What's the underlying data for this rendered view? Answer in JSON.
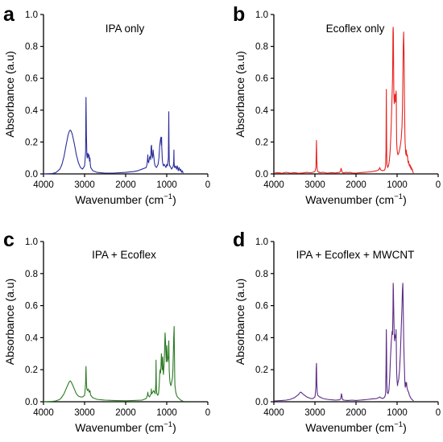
{
  "chart_data": [
    {
      "type": "line",
      "panel_letter": "a",
      "title": "IPA only",
      "xlabel": "Wavenumber (cm",
      "xlabel_sup": "−1",
      "xlabel_end": ")",
      "ylabel": "Absorbance (a.u)",
      "xlim": [
        4000,
        0
      ],
      "ylim": [
        0,
        1.0
      ],
      "xticks": [
        "4000",
        "3000",
        "2000",
        "1000",
        "0"
      ],
      "yticks": [
        "0.0",
        "0.2",
        "0.4",
        "0.6",
        "0.8",
        "1.0"
      ],
      "color": "#2b2f9a",
      "series": [
        {
          "x": [
            4000,
            3800,
            3700,
            3600,
            3550,
            3500,
            3450,
            3400,
            3370,
            3350,
            3330,
            3300,
            3250,
            3200,
            3150,
            3100,
            3050,
            3000,
            2990,
            2975,
            2970,
            2965,
            2955,
            2945,
            2935,
            2920,
            2900,
            2890,
            2880,
            2870,
            2860,
            2850,
            2800,
            2700,
            2500,
            2300,
            2000,
            1800,
            1700,
            1600,
            1500,
            1480,
            1465,
            1460,
            1455,
            1440,
            1420,
            1410,
            1400,
            1390,
            1380,
            1370,
            1360,
            1345,
            1330,
            1320,
            1310,
            1300,
            1280,
            1250,
            1230,
            1210,
            1190,
            1180,
            1170,
            1160,
            1150,
            1140,
            1130,
            1125,
            1120,
            1115,
            1110,
            1100,
            1080,
            1060,
            1040,
            1020,
            1000,
            980,
            960,
            955,
            950,
            945,
            940,
            935,
            930,
            920,
            900,
            880,
            860,
            840,
            830,
            825,
            820,
            815,
            810,
            800,
            780,
            760,
            740,
            720,
            700,
            680,
            660,
            640,
            620,
            600
          ],
          "y": [
            0.0,
            0.002,
            0.008,
            0.03,
            0.06,
            0.11,
            0.18,
            0.245,
            0.268,
            0.275,
            0.27,
            0.25,
            0.19,
            0.12,
            0.07,
            0.04,
            0.03,
            0.05,
            0.08,
            0.14,
            0.35,
            0.48,
            0.25,
            0.12,
            0.1,
            0.13,
            0.1,
            0.12,
            0.08,
            0.1,
            0.06,
            0.04,
            0.02,
            0.01,
            0.005,
            0.005,
            0.01,
            0.015,
            0.02,
            0.03,
            0.04,
            0.06,
            0.1,
            0.12,
            0.08,
            0.07,
            0.1,
            0.11,
            0.1,
            0.09,
            0.17,
            0.18,
            0.12,
            0.1,
            0.15,
            0.12,
            0.1,
            0.07,
            0.05,
            0.04,
            0.05,
            0.06,
            0.1,
            0.14,
            0.18,
            0.2,
            0.22,
            0.23,
            0.18,
            0.23,
            0.16,
            0.14,
            0.1,
            0.07,
            0.05,
            0.06,
            0.05,
            0.04,
            0.06,
            0.05,
            0.1,
            0.25,
            0.39,
            0.2,
            0.1,
            0.07,
            0.05,
            0.05,
            0.04,
            0.03,
            0.04,
            0.05,
            0.08,
            0.15,
            0.07,
            0.05,
            0.04,
            0.04,
            0.05,
            0.03,
            0.05,
            0.02,
            0.04,
            0.02,
            0.03,
            0.01,
            0.02,
            0.005
          ]
        }
      ]
    },
    {
      "type": "line",
      "panel_letter": "b",
      "title": "Ecoflex only",
      "xlabel": "Wavenumber (cm",
      "xlabel_sup": "−1",
      "xlabel_end": ")",
      "ylabel": "Absorbance (a.u)",
      "xlim": [
        4000,
        0
      ],
      "ylim": [
        0,
        1.0
      ],
      "xticks": [
        "4000",
        "3000",
        "2000",
        "1000",
        "0"
      ],
      "yticks": [
        "0.0",
        "0.2",
        "0.4",
        "0.6",
        "0.8",
        "1.0"
      ],
      "color": "#e8231f",
      "series": [
        {
          "x": [
            4000,
            3900,
            3800,
            3700,
            3600,
            3500,
            3400,
            3300,
            3200,
            3100,
            3050,
            3000,
            2975,
            2970,
            2963,
            2955,
            2945,
            2930,
            2910,
            2900,
            2880,
            2800,
            2700,
            2600,
            2500,
            2400,
            2380,
            2365,
            2355,
            2340,
            2320,
            2300,
            2250,
            2200,
            2150,
            2100,
            2000,
            1900,
            1800,
            1700,
            1600,
            1500,
            1450,
            1420,
            1410,
            1400,
            1350,
            1300,
            1280,
            1270,
            1262,
            1258,
            1252,
            1245,
            1230,
            1210,
            1190,
            1170,
            1150,
            1130,
            1110,
            1100,
            1095,
            1090,
            1085,
            1080,
            1070,
            1060,
            1050,
            1040,
            1030,
            1025,
            1020,
            1015,
            1010,
            1000,
            980,
            960,
            940,
            920,
            900,
            880,
            870,
            860,
            850,
            840,
            830,
            820,
            815,
            810,
            805,
            800,
            795,
            790,
            785,
            780,
            775,
            770,
            760,
            750,
            740,
            730,
            720,
            710,
            700,
            690,
            680,
            670,
            660,
            650,
            640,
            630,
            620,
            610,
            600
          ],
          "y": [
            0.005,
            0.008,
            0.004,
            0.01,
            0.005,
            0.008,
            0.004,
            0.006,
            0.01,
            0.007,
            0.01,
            0.015,
            0.04,
            0.12,
            0.21,
            0.09,
            0.03,
            0.015,
            0.01,
            0.012,
            0.008,
            0.01,
            0.005,
            0.008,
            0.006,
            0.01,
            0.015,
            0.035,
            0.03,
            0.012,
            0.008,
            0.006,
            0.01,
            0.008,
            0.01,
            0.006,
            0.005,
            0.008,
            0.01,
            0.012,
            0.015,
            0.02,
            0.025,
            0.04,
            0.03,
            0.025,
            0.02,
            0.025,
            0.05,
            0.15,
            0.53,
            0.35,
            0.12,
            0.06,
            0.04,
            0.05,
            0.08,
            0.14,
            0.25,
            0.42,
            0.6,
            0.9,
            0.92,
            0.88,
            0.7,
            0.52,
            0.44,
            0.48,
            0.5,
            0.45,
            0.47,
            0.52,
            0.5,
            0.3,
            0.2,
            0.15,
            0.12,
            0.13,
            0.15,
            0.18,
            0.22,
            0.3,
            0.4,
            0.6,
            0.8,
            0.89,
            0.75,
            0.45,
            0.35,
            0.25,
            0.2,
            0.18,
            0.15,
            0.13,
            0.12,
            0.14,
            0.15,
            0.13,
            0.11,
            0.12,
            0.09,
            0.07,
            0.08,
            0.06,
            0.05,
            0.06,
            0.04,
            0.05,
            0.03,
            0.04,
            0.025,
            0.03,
            0.015,
            0.01,
            0.005
          ]
        }
      ]
    },
    {
      "type": "line",
      "panel_letter": "c",
      "title": "IPA + Ecoflex",
      "xlabel": "Wavenumber (cm",
      "xlabel_sup": "−1",
      "xlabel_end": ")",
      "ylabel": "Absorbance (a.u)",
      "xlim": [
        4000,
        0
      ],
      "ylim": [
        0,
        1.0
      ],
      "xticks": [
        "4000",
        "3000",
        "2000",
        "1000",
        "0"
      ],
      "yticks": [
        "0.0",
        "0.2",
        "0.4",
        "0.6",
        "0.8",
        "1.0"
      ],
      "color": "#2c7a24",
      "series": [
        {
          "x": [
            4000,
            3800,
            3700,
            3600,
            3550,
            3500,
            3450,
            3400,
            3370,
            3350,
            3330,
            3300,
            3250,
            3200,
            3150,
            3100,
            3050,
            3000,
            2990,
            2975,
            2970,
            2965,
            2955,
            2945,
            2930,
            2910,
            2890,
            2870,
            2850,
            2800,
            2700,
            2500,
            2300,
            2000,
            1800,
            1600,
            1500,
            1470,
            1460,
            1450,
            1420,
            1400,
            1380,
            1375,
            1370,
            1360,
            1340,
            1320,
            1300,
            1280,
            1265,
            1260,
            1255,
            1250,
            1240,
            1220,
            1200,
            1190,
            1180,
            1170,
            1160,
            1150,
            1140,
            1130,
            1120,
            1110,
            1100,
            1095,
            1090,
            1080,
            1060,
            1050,
            1040,
            1030,
            1020,
            1010,
            1000,
            990,
            980,
            960,
            955,
            950,
            945,
            940,
            930,
            920,
            900,
            880,
            860,
            850,
            840,
            830,
            820,
            815,
            810,
            805,
            800,
            790,
            780,
            770,
            760,
            740,
            720,
            700,
            680,
            660,
            640,
            620,
            600
          ],
          "y": [
            0.0,
            0.002,
            0.005,
            0.015,
            0.03,
            0.05,
            0.08,
            0.11,
            0.125,
            0.13,
            0.125,
            0.11,
            0.08,
            0.05,
            0.035,
            0.03,
            0.03,
            0.04,
            0.06,
            0.12,
            0.18,
            0.22,
            0.12,
            0.08,
            0.07,
            0.08,
            0.06,
            0.07,
            0.04,
            0.025,
            0.015,
            0.01,
            0.008,
            0.006,
            0.008,
            0.01,
            0.02,
            0.04,
            0.06,
            0.04,
            0.03,
            0.04,
            0.05,
            0.08,
            0.06,
            0.05,
            0.06,
            0.07,
            0.06,
            0.05,
            0.12,
            0.26,
            0.15,
            0.07,
            0.05,
            0.04,
            0.05,
            0.08,
            0.12,
            0.18,
            0.2,
            0.18,
            0.22,
            0.3,
            0.25,
            0.2,
            0.28,
            0.25,
            0.2,
            0.17,
            0.25,
            0.35,
            0.43,
            0.38,
            0.3,
            0.25,
            0.35,
            0.3,
            0.25,
            0.28,
            0.35,
            0.38,
            0.3,
            0.2,
            0.15,
            0.12,
            0.1,
            0.12,
            0.15,
            0.2,
            0.3,
            0.4,
            0.47,
            0.35,
            0.25,
            0.15,
            0.1,
            0.08,
            0.06,
            0.05,
            0.04,
            0.03,
            0.025,
            0.02,
            0.015,
            0.01,
            0.008,
            0.005,
            0.003
          ]
        }
      ]
    },
    {
      "type": "line",
      "panel_letter": "d",
      "title": "IPA + Ecoflex + MWCNT",
      "xlabel": "Wavenumber (cm",
      "xlabel_sup": "−1",
      "xlabel_end": ")",
      "ylabel": "Absorbance (a.u)",
      "xlim": [
        4000,
        0
      ],
      "ylim": [
        0,
        1.0
      ],
      "xticks": [
        "4000",
        "3000",
        "2000",
        "1000",
        "0"
      ],
      "yticks": [
        "0.0",
        "0.2",
        "0.4",
        "0.6",
        "0.8",
        "1.0"
      ],
      "color": "#5b2a86",
      "series": [
        {
          "x": [
            4000,
            3800,
            3700,
            3600,
            3500,
            3450,
            3400,
            3370,
            3350,
            3330,
            3300,
            3250,
            3200,
            3150,
            3100,
            3050,
            3000,
            2990,
            2975,
            2970,
            2963,
            2955,
            2945,
            2930,
            2910,
            2890,
            2870,
            2850,
            2800,
            2700,
            2600,
            2500,
            2400,
            2370,
            2355,
            2345,
            2330,
            2300,
            2200,
            2100,
            2000,
            1900,
            1800,
            1700,
            1600,
            1500,
            1450,
            1420,
            1400,
            1350,
            1300,
            1280,
            1270,
            1262,
            1255,
            1250,
            1240,
            1220,
            1200,
            1180,
            1160,
            1140,
            1120,
            1110,
            1100,
            1095,
            1090,
            1080,
            1070,
            1060,
            1050,
            1040,
            1030,
            1025,
            1020,
            1015,
            1010,
            1000,
            990,
            980,
            960,
            940,
            920,
            900,
            880,
            870,
            860,
            850,
            840,
            830,
            820,
            815,
            810,
            805,
            800,
            790,
            780,
            770,
            760,
            740,
            720,
            700,
            680,
            660,
            640,
            620,
            600
          ],
          "y": [
            0.005,
            0.008,
            0.01,
            0.015,
            0.025,
            0.035,
            0.045,
            0.055,
            0.06,
            0.058,
            0.05,
            0.04,
            0.03,
            0.025,
            0.02,
            0.02,
            0.03,
            0.05,
            0.1,
            0.2,
            0.24,
            0.12,
            0.06,
            0.04,
            0.035,
            0.03,
            0.03,
            0.025,
            0.02,
            0.015,
            0.012,
            0.01,
            0.012,
            0.02,
            0.05,
            0.04,
            0.015,
            0.01,
            0.008,
            0.01,
            0.008,
            0.01,
            0.012,
            0.015,
            0.018,
            0.02,
            0.025,
            0.03,
            0.025,
            0.02,
            0.03,
            0.05,
            0.2,
            0.45,
            0.3,
            0.12,
            0.06,
            0.05,
            0.07,
            0.15,
            0.28,
            0.38,
            0.44,
            0.42,
            0.58,
            0.74,
            0.7,
            0.55,
            0.42,
            0.38,
            0.4,
            0.42,
            0.4,
            0.45,
            0.38,
            0.25,
            0.18,
            0.13,
            0.1,
            0.12,
            0.14,
            0.2,
            0.3,
            0.45,
            0.6,
            0.7,
            0.74,
            0.58,
            0.4,
            0.28,
            0.2,
            0.15,
            0.12,
            0.1,
            0.09,
            0.12,
            0.1,
            0.12,
            0.09,
            0.07,
            0.06,
            0.04,
            0.03,
            0.02,
            0.015,
            0.01,
            0.005
          ]
        }
      ]
    }
  ]
}
